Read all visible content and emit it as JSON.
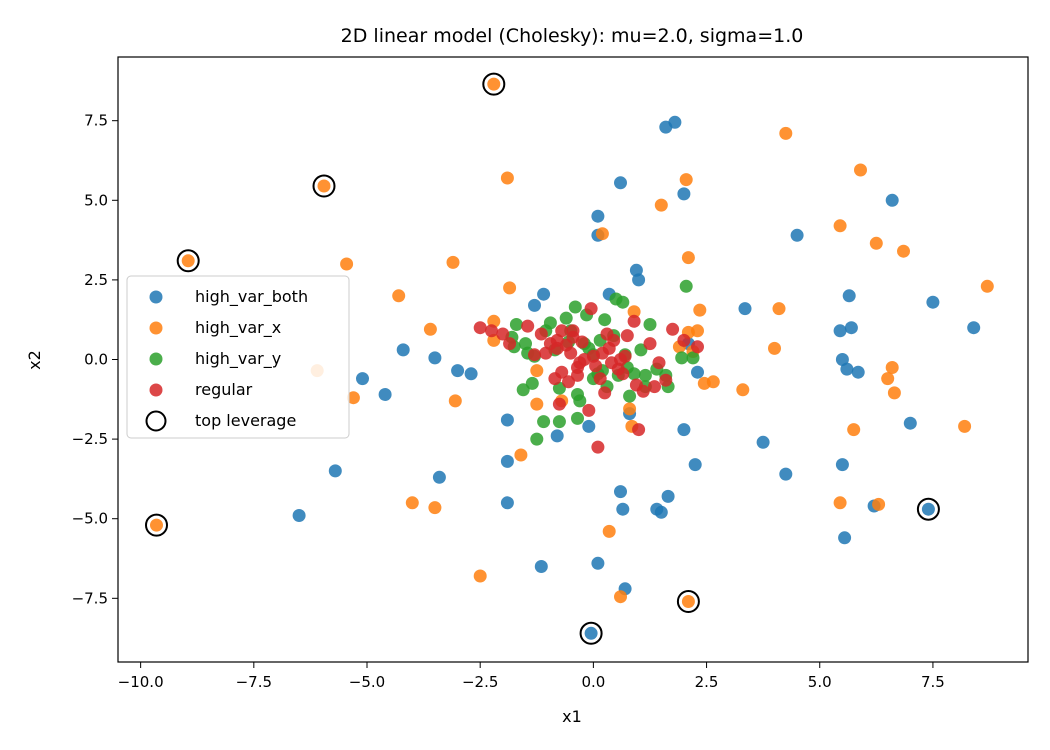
{
  "chart_data": {
    "type": "scatter",
    "title": "2D linear model (Cholesky): mu=2.0, sigma=1.0",
    "xlabel": "x1",
    "ylabel": "x2",
    "xlim": [
      -10.5,
      9.6
    ],
    "ylim": [
      -9.5,
      9.5
    ],
    "xticks": [
      -10.0,
      -7.5,
      -5.0,
      -2.5,
      0.0,
      2.5,
      5.0,
      7.5
    ],
    "yticks": [
      -7.5,
      -5.0,
      -2.5,
      0.0,
      2.5,
      5.0,
      7.5
    ],
    "xtick_labels": [
      "−10.0",
      "−7.5",
      "−5.0",
      "−2.5",
      "0.0",
      "2.5",
      "5.0",
      "7.5"
    ],
    "ytick_labels": [
      "−7.5",
      "−5.0",
      "−2.5",
      "0.0",
      "2.5",
      "5.0",
      "7.5"
    ],
    "grid": false,
    "legend_position": "center-left",
    "series": [
      {
        "name": "high_var_both",
        "color": "#1f77b4",
        "points": [
          [
            -6.5,
            -4.9
          ],
          [
            -5.7,
            -3.5
          ],
          [
            -5.1,
            -0.6
          ],
          [
            -4.6,
            -1.1
          ],
          [
            -4.2,
            0.3
          ],
          [
            -3.5,
            0.05
          ],
          [
            -3.4,
            -3.7
          ],
          [
            -3.0,
            -0.35
          ],
          [
            -2.7,
            -0.45
          ],
          [
            -1.9,
            -1.9
          ],
          [
            -1.9,
            -3.2
          ],
          [
            -1.9,
            -4.5
          ],
          [
            -1.3,
            1.7
          ],
          [
            -1.1,
            2.05
          ],
          [
            -1.15,
            -6.5
          ],
          [
            -0.8,
            -2.4
          ],
          [
            -0.1,
            -2.1
          ],
          [
            0.1,
            4.5
          ],
          [
            0.1,
            3.9
          ],
          [
            0.1,
            -6.4
          ],
          [
            0.35,
            2.05
          ],
          [
            0.6,
            5.55
          ],
          [
            0.6,
            -4.15
          ],
          [
            0.65,
            -4.7
          ],
          [
            0.7,
            -7.2
          ],
          [
            0.8,
            -1.7
          ],
          [
            0.95,
            2.8
          ],
          [
            1.0,
            2.5
          ],
          [
            1.6,
            7.3
          ],
          [
            1.8,
            7.45
          ],
          [
            1.4,
            -4.7
          ],
          [
            1.5,
            -4.8
          ],
          [
            1.65,
            -4.3
          ],
          [
            2.0,
            5.2
          ],
          [
            2.0,
            -2.2
          ],
          [
            2.25,
            -3.3
          ],
          [
            2.3,
            -0.4
          ],
          [
            2.1,
            0.5
          ],
          [
            3.35,
            1.6
          ],
          [
            3.75,
            -2.6
          ],
          [
            4.25,
            -3.6
          ],
          [
            4.5,
            3.9
          ],
          [
            5.45,
            0.9
          ],
          [
            5.5,
            0.0
          ],
          [
            5.5,
            -3.3
          ],
          [
            5.55,
            -5.6
          ],
          [
            5.6,
            -0.3
          ],
          [
            5.65,
            2.0
          ],
          [
            5.7,
            1.0
          ],
          [
            5.85,
            -0.4
          ],
          [
            6.2,
            -4.6
          ],
          [
            6.6,
            5.0
          ],
          [
            7.0,
            -2.0
          ],
          [
            7.5,
            1.8
          ],
          [
            8.4,
            1.0
          ],
          [
            7.4,
            -4.7
          ],
          [
            -0.05,
            -8.6
          ]
        ]
      },
      {
        "name": "high_var_x",
        "color": "#ff7f0e",
        "points": [
          [
            -9.65,
            -5.2
          ],
          [
            -8.95,
            3.1
          ],
          [
            -6.1,
            -0.35
          ],
          [
            -5.95,
            5.45
          ],
          [
            -5.45,
            3.0
          ],
          [
            -5.3,
            -1.2
          ],
          [
            -4.3,
            2.0
          ],
          [
            -4.0,
            -4.5
          ],
          [
            -3.6,
            0.95
          ],
          [
            -3.5,
            -4.65
          ],
          [
            -3.1,
            3.05
          ],
          [
            -3.05,
            -1.3
          ],
          [
            -2.5,
            -6.8
          ],
          [
            -2.2,
            1.2
          ],
          [
            -2.2,
            0.6
          ],
          [
            -2.2,
            8.65
          ],
          [
            -1.9,
            5.7
          ],
          [
            -1.85,
            2.25
          ],
          [
            -1.6,
            -3.0
          ],
          [
            -1.25,
            -0.35
          ],
          [
            -1.25,
            -1.4
          ],
          [
            -0.7,
            -1.3
          ],
          [
            0.2,
            3.95
          ],
          [
            0.35,
            -5.4
          ],
          [
            0.6,
            -7.45
          ],
          [
            0.8,
            -1.55
          ],
          [
            0.85,
            -2.1
          ],
          [
            0.9,
            1.5
          ],
          [
            1.5,
            4.85
          ],
          [
            1.9,
            0.4
          ],
          [
            2.05,
            5.65
          ],
          [
            2.1,
            0.85
          ],
          [
            2.1,
            3.2
          ],
          [
            2.1,
            -7.6
          ],
          [
            2.2,
            0.25
          ],
          [
            2.3,
            0.9
          ],
          [
            2.35,
            1.55
          ],
          [
            2.45,
            -0.75
          ],
          [
            2.65,
            -0.7
          ],
          [
            3.3,
            -0.95
          ],
          [
            4.0,
            0.35
          ],
          [
            4.1,
            1.6
          ],
          [
            4.25,
            7.1
          ],
          [
            5.45,
            4.2
          ],
          [
            5.45,
            -4.5
          ],
          [
            5.75,
            -2.2
          ],
          [
            5.9,
            5.95
          ],
          [
            6.25,
            3.65
          ],
          [
            6.3,
            -4.55
          ],
          [
            6.5,
            -0.6
          ],
          [
            6.6,
            -0.25
          ],
          [
            6.65,
            -1.05
          ],
          [
            6.85,
            3.4
          ],
          [
            8.2,
            -2.1
          ],
          [
            8.7,
            2.3
          ]
        ]
      },
      {
        "name": "high_var_y",
        "color": "#2ca02c",
        "points": [
          [
            -1.7,
            1.1
          ],
          [
            -1.8,
            0.7
          ],
          [
            -1.75,
            0.4
          ],
          [
            -1.5,
            0.5
          ],
          [
            -1.45,
            0.2
          ],
          [
            -1.55,
            -0.95
          ],
          [
            -1.35,
            -0.75
          ],
          [
            -1.3,
            0.1
          ],
          [
            -1.25,
            -2.5
          ],
          [
            -1.1,
            -1.95
          ],
          [
            -1.05,
            0.9
          ],
          [
            -0.95,
            1.15
          ],
          [
            -0.85,
            0.3
          ],
          [
            -0.75,
            -0.9
          ],
          [
            -0.75,
            -1.95
          ],
          [
            -0.6,
            1.3
          ],
          [
            -0.5,
            0.9
          ],
          [
            -0.4,
            1.65
          ],
          [
            -0.35,
            -1.1
          ],
          [
            -0.35,
            -1.85
          ],
          [
            -0.3,
            -1.3
          ],
          [
            -0.2,
            0.5
          ],
          [
            -0.15,
            1.4
          ],
          [
            -0.1,
            0.35
          ],
          [
            0.0,
            -0.6
          ],
          [
            0.0,
            0.15
          ],
          [
            0.1,
            -0.45
          ],
          [
            0.15,
            0.6
          ],
          [
            0.2,
            -0.35
          ],
          [
            0.25,
            1.25
          ],
          [
            0.45,
            0.75
          ],
          [
            0.5,
            1.9
          ],
          [
            0.65,
            1.8
          ],
          [
            0.7,
            0.15
          ],
          [
            0.75,
            -0.25
          ],
          [
            0.8,
            -1.15
          ],
          [
            0.9,
            -0.45
          ],
          [
            1.05,
            0.3
          ],
          [
            1.15,
            -0.5
          ],
          [
            1.15,
            -0.85
          ],
          [
            1.25,
            1.1
          ],
          [
            1.4,
            -0.3
          ],
          [
            1.6,
            -0.5
          ],
          [
            1.65,
            -0.85
          ],
          [
            1.95,
            0.05
          ],
          [
            2.05,
            2.3
          ],
          [
            2.2,
            0.05
          ],
          [
            0.55,
            -0.5
          ],
          [
            0.3,
            -0.85
          ],
          [
            -0.55,
            0.55
          ]
        ]
      },
      {
        "name": "regular",
        "color": "#d62728",
        "points": [
          [
            -2.5,
            1.0
          ],
          [
            -2.25,
            0.9
          ],
          [
            -2.0,
            0.8
          ],
          [
            -1.85,
            0.5
          ],
          [
            -1.45,
            1.05
          ],
          [
            -1.3,
            0.15
          ],
          [
            -1.15,
            0.8
          ],
          [
            -1.05,
            0.2
          ],
          [
            -0.95,
            0.5
          ],
          [
            -0.85,
            -0.6
          ],
          [
            -0.8,
            0.6
          ],
          [
            -0.75,
            -1.4
          ],
          [
            -0.8,
            0.35
          ],
          [
            -0.7,
            -0.4
          ],
          [
            -0.6,
            0.45
          ],
          [
            -0.5,
            0.2
          ],
          [
            -0.55,
            -0.7
          ],
          [
            -0.45,
            0.7
          ],
          [
            -0.45,
            0.9
          ],
          [
            -0.35,
            -0.5
          ],
          [
            -0.35,
            -0.25
          ],
          [
            -0.25,
            0.55
          ],
          [
            -0.2,
            0.0
          ],
          [
            -0.1,
            -1.6
          ],
          [
            -0.05,
            1.6
          ],
          [
            0.0,
            0.1
          ],
          [
            0.05,
            -0.2
          ],
          [
            0.1,
            -2.75
          ],
          [
            0.2,
            0.2
          ],
          [
            0.25,
            -1.05
          ],
          [
            0.3,
            0.8
          ],
          [
            0.35,
            0.35
          ],
          [
            0.4,
            -0.1
          ],
          [
            0.45,
            0.6
          ],
          [
            0.55,
            -0.3
          ],
          [
            0.6,
            0.0
          ],
          [
            0.65,
            -0.45
          ],
          [
            0.7,
            0.1
          ],
          [
            0.75,
            0.75
          ],
          [
            0.9,
            1.2
          ],
          [
            0.95,
            -0.8
          ],
          [
            1.0,
            -2.2
          ],
          [
            1.1,
            -1.0
          ],
          [
            1.25,
            0.5
          ],
          [
            1.35,
            -0.85
          ],
          [
            1.45,
            -0.1
          ],
          [
            1.6,
            -0.65
          ],
          [
            1.75,
            0.95
          ],
          [
            2.0,
            0.6
          ],
          [
            2.3,
            0.4
          ],
          [
            -0.3,
            -0.1
          ],
          [
            -0.7,
            0.9
          ],
          [
            0.15,
            -0.6
          ]
        ]
      }
    ],
    "top_leverage": {
      "name": "top leverage",
      "color": "#000000",
      "points": [
        [
          -2.2,
          8.65
        ],
        [
          -5.95,
          5.45
        ],
        [
          -8.95,
          3.1
        ],
        [
          -9.65,
          -5.2
        ],
        [
          -0.05,
          -8.6
        ],
        [
          2.1,
          -7.6
        ],
        [
          7.4,
          -4.7
        ]
      ]
    }
  }
}
